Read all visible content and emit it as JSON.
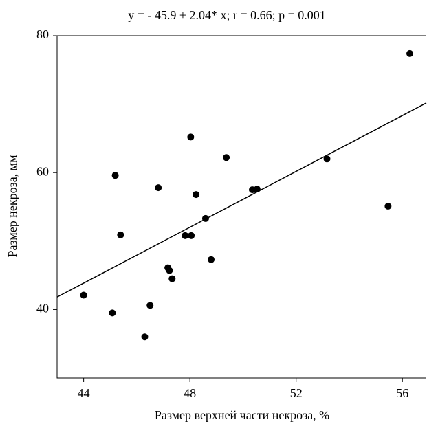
{
  "chart_data": {
    "type": "scatter",
    "title": "y = - 45.9 + 2.04* x; r = 0.66;  p = 0.001",
    "x_label": "Размер верхней части  некроза, %",
    "y_label": "Размер некроза, мм",
    "series": [
      {
        "color": "#000000",
        "x": [
          44.0,
          45.08,
          45.19,
          45.39,
          46.3,
          46.5,
          46.81,
          47.17,
          47.23,
          47.33,
          47.82,
          48.03,
          48.05,
          48.23,
          48.59,
          48.8,
          49.37,
          50.35,
          50.53,
          53.16,
          55.46,
          56.28
        ],
        "values": [
          42.1,
          39.5,
          59.6,
          50.9,
          36.0,
          40.6,
          57.8,
          46.1,
          45.7,
          44.5,
          50.8,
          65.2,
          50.8,
          56.8,
          53.3,
          47.3,
          62.2,
          57.5,
          57.6,
          62.0,
          55.1,
          77.4
        ]
      }
    ],
    "fit": {
      "intercept": -45.9,
      "slope": 2.04,
      "color": "#000000"
    },
    "xlim": [
      43,
      56.9
    ],
    "ylim": [
      30,
      80
    ],
    "xticks": [
      44,
      48,
      52,
      56
    ],
    "yticks": [
      40,
      60,
      80
    ]
  }
}
